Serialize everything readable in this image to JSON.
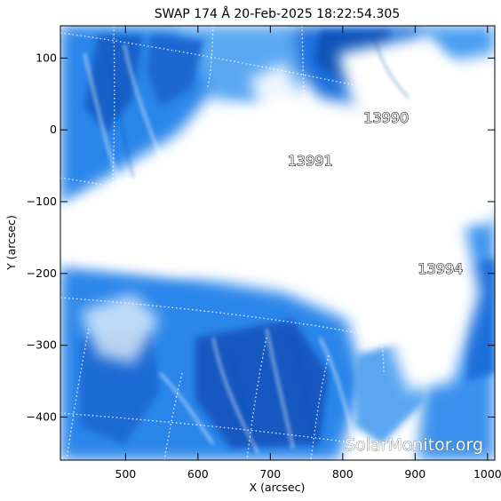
{
  "title": "SWAP 174 Å 20-Feb-2025 18:22:54.305",
  "xlabel": "X (arcsec)",
  "ylabel": "Y (arcsec)",
  "watermark": "SolarMonitor.org",
  "colors": {
    "solar_blue": "#1e78e6",
    "solar_dark": "#0f4fb0",
    "plasma_white": "#ffffff"
  },
  "image": {
    "xlim": [
      410,
      1010
    ],
    "ylim": [
      -460,
      145
    ],
    "xticks": [
      500,
      600,
      700,
      800,
      900,
      1000
    ],
    "yticks": [
      100,
      0,
      -100,
      -200,
      -300,
      -400
    ],
    "active_regions": [
      {
        "label": "13990",
        "x": 860,
        "y": 10
      },
      {
        "label": "13991",
        "x": 755,
        "y": -50
      },
      {
        "label": "13994",
        "x": 935,
        "y": -200
      }
    ]
  }
}
